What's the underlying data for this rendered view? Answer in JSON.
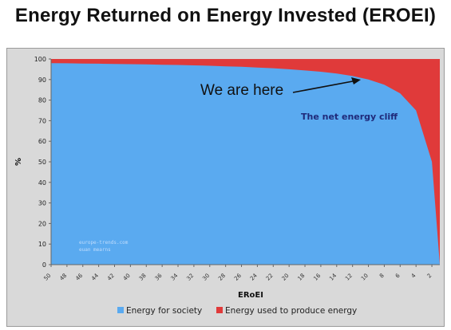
{
  "chart_data": {
    "type": "area",
    "title": "Energy Returned on Energy Invested (EROEI)",
    "xlabel": "ERoEI",
    "ylabel": "%",
    "ylim": [
      0,
      100
    ],
    "yticks": [
      0,
      10,
      20,
      30,
      40,
      50,
      60,
      70,
      80,
      90,
      100
    ],
    "x": [
      50,
      48,
      46,
      44,
      42,
      40,
      38,
      36,
      34,
      32,
      30,
      28,
      26,
      24,
      22,
      20,
      18,
      16,
      14,
      12,
      10,
      8,
      6,
      4,
      2,
      1
    ],
    "xticks": [
      "50",
      "48",
      "46",
      "44",
      "42",
      "40",
      "38",
      "36",
      "34",
      "32",
      "30",
      "28",
      "26",
      "24",
      "22",
      "20",
      "18",
      "16",
      "14",
      "12",
      "10",
      "8",
      "6",
      "4",
      "2"
    ],
    "series": [
      {
        "name": "Energy for society",
        "color": "#5aaaf0",
        "values": [
          98,
          97.9,
          97.8,
          97.7,
          97.6,
          97.5,
          97.4,
          97.2,
          97.1,
          96.9,
          96.7,
          96.4,
          96.2,
          95.8,
          95.5,
          95,
          94.4,
          93.8,
          92.9,
          91.7,
          90,
          87.5,
          83.3,
          75,
          50,
          0
        ]
      },
      {
        "name": "Energy used to produce energy",
        "color": "#e03a3a",
        "values": [
          2,
          2.1,
          2.2,
          2.3,
          2.4,
          2.5,
          2.6,
          2.8,
          2.9,
          3.1,
          3.3,
          3.6,
          3.8,
          4.2,
          4.5,
          5,
          5.6,
          6.2,
          7.1,
          8.3,
          10,
          12.5,
          16.7,
          25,
          50,
          100
        ]
      }
    ],
    "annotations": [
      {
        "text": "We are here"
      },
      {
        "text": "The net energy cliff"
      }
    ],
    "watermark": [
      "europe-trends.com",
      "euan mearns"
    ],
    "legend_position": "bottom",
    "grid": false
  }
}
